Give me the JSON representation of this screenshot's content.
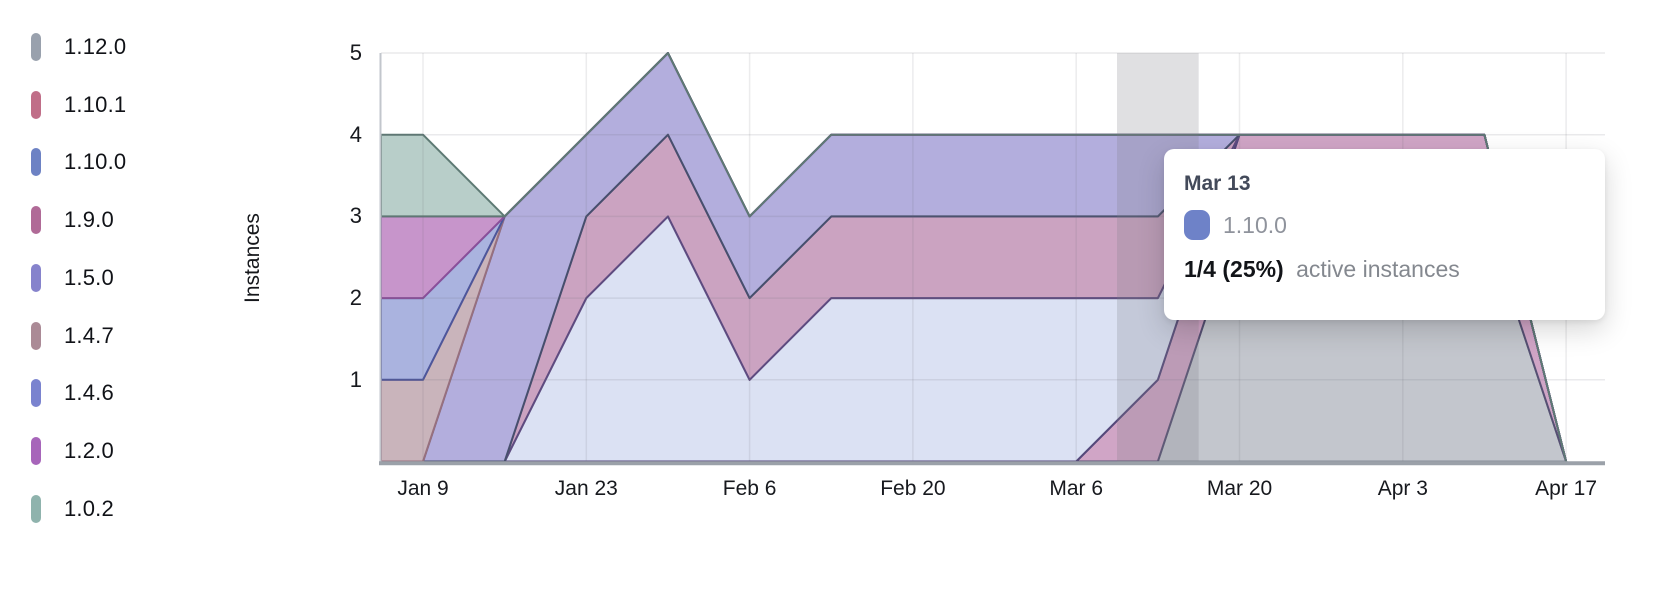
{
  "page": {
    "background": "#ffffff"
  },
  "legend": {
    "items": [
      {
        "label": "1.12.0",
        "color": "#99a1ad"
      },
      {
        "label": "1.10.1",
        "color": "#c06e88"
      },
      {
        "label": "1.10.0",
        "color": "#6d82c4"
      },
      {
        "label": "1.9.0",
        "color": "#b06a97"
      },
      {
        "label": "1.5.0",
        "color": "#8683cc"
      },
      {
        "label": "1.4.7",
        "color": "#ab8a96"
      },
      {
        "label": "1.4.6",
        "color": "#7a83cf"
      },
      {
        "label": "1.2.0",
        "color": "#a765ba"
      },
      {
        "label": "1.0.2",
        "color": "#8fb3ad"
      }
    ]
  },
  "tooltip": {
    "date": "Mar 13",
    "series_label": "1.10.0",
    "marker_color": "#6e82c8",
    "value_text": "1/4 (25%)",
    "value_suffix": "active instances"
  },
  "chart_data": {
    "type": "area",
    "stacked": true,
    "title": "",
    "ylabel": "Instances",
    "ylim": [
      0,
      5
    ],
    "y_ticks": [
      1,
      2,
      3,
      4,
      5
    ],
    "grid": true,
    "legend_position": "left",
    "x_unit": "days_since_jan_2",
    "x": [
      0,
      7,
      14,
      21,
      28,
      35,
      42,
      49,
      56,
      63,
      70,
      77,
      84,
      91,
      98,
      105
    ],
    "x_labels": [
      "Jan 2",
      "Jan 9",
      "Jan 16",
      "Jan 23",
      "Jan 30",
      "Feb 6",
      "Feb 13",
      "Feb 20",
      "Feb 27",
      "Mar 6",
      "Mar 13",
      "Mar 20",
      "Mar 27",
      "Apr 3",
      "Apr 10",
      "Apr 17"
    ],
    "x_tick_days": [
      7,
      21,
      35,
      49,
      63,
      77,
      91,
      105
    ],
    "x_tick_labels": [
      "Jan 9",
      "Jan 23",
      "Feb 6",
      "Feb 20",
      "Mar 6",
      "Mar 20",
      "Apr 3",
      "Apr 17"
    ],
    "highlight_day": 70,
    "highlight_label": "Mar 13",
    "stack_order": "bottom_to_top",
    "series": [
      {
        "name": "1.12.0",
        "fill": "#c3c6cd",
        "stroke": "#878e99",
        "values": [
          0,
          0,
          0,
          0,
          0,
          0,
          0,
          0,
          0,
          0,
          0,
          3,
          3,
          3,
          3,
          0
        ]
      },
      {
        "name": "1.10.1",
        "fill": "#d0a5c6",
        "stroke": "#565073",
        "values": [
          0,
          0,
          0,
          0,
          0,
          0,
          0,
          0,
          0,
          0,
          1,
          1,
          1,
          1,
          1,
          0
        ]
      },
      {
        "name": "1.10.0",
        "fill": "#dbe1f3",
        "stroke": "#55487b",
        "values": [
          0,
          0,
          0,
          2,
          3,
          1,
          2,
          2,
          2,
          2,
          1,
          0,
          0,
          0,
          0,
          0
        ]
      },
      {
        "name": "1.9.0",
        "fill": "#cba3c1",
        "stroke": "#5e4b80",
        "values": [
          0,
          0,
          0,
          1,
          1,
          1,
          1,
          1,
          1,
          1,
          1,
          0,
          0,
          0,
          0,
          0
        ]
      },
      {
        "name": "1.5.0",
        "fill": "#b3aedd",
        "stroke": "#474f6d",
        "values": [
          0,
          0,
          3,
          1,
          1,
          1,
          1,
          1,
          1,
          1,
          1,
          0,
          0,
          0,
          0,
          0
        ]
      },
      {
        "name": "1.4.7",
        "fill": "#c9b4bb",
        "stroke": "#97707f",
        "values": [
          1,
          1,
          0,
          0,
          0,
          0,
          0,
          0,
          0,
          0,
          0,
          0,
          0,
          0,
          0,
          0
        ]
      },
      {
        "name": "1.4.6",
        "fill": "#aab3df",
        "stroke": "#4d569b",
        "values": [
          1,
          1,
          0,
          0,
          0,
          0,
          0,
          0,
          0,
          0,
          0,
          0,
          0,
          0,
          0,
          0
        ]
      },
      {
        "name": "1.2.0",
        "fill": "#c795cb",
        "stroke": "#8a4f9a",
        "values": [
          1,
          1,
          0,
          0,
          0,
          0,
          0,
          0,
          0,
          0,
          0,
          0,
          0,
          0,
          0,
          0
        ]
      },
      {
        "name": "1.0.2",
        "fill": "#b8cec9",
        "stroke": "#5e7a74",
        "values": [
          1,
          1,
          0,
          0,
          0,
          0,
          0,
          0,
          0,
          0,
          0,
          0,
          0,
          0,
          0,
          0
        ]
      }
    ],
    "tooltip_readout": {
      "date": "Mar 13",
      "series": "1.10.0",
      "value": 1,
      "total": 4,
      "percent": 25
    }
  }
}
